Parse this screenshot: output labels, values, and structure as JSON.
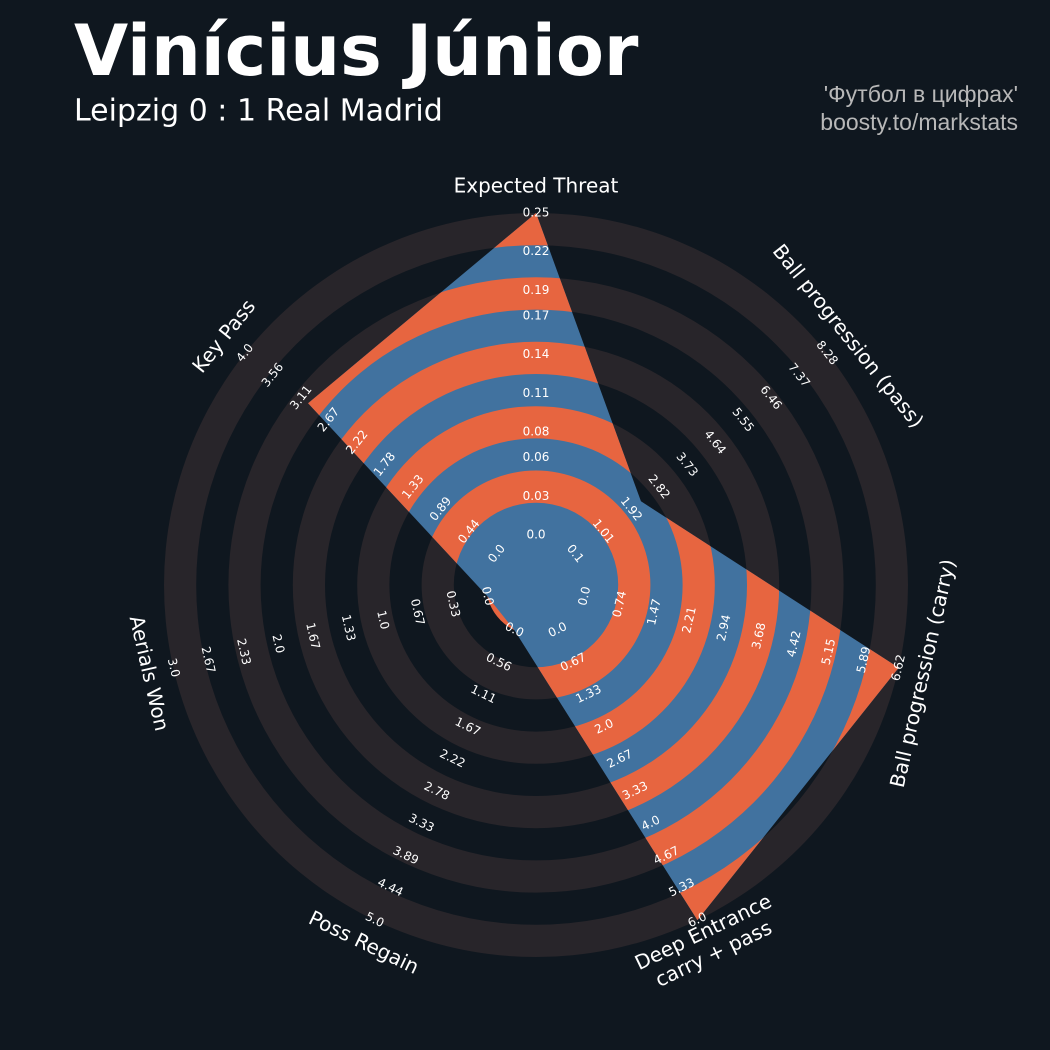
{
  "chart_data": {
    "type": "radar",
    "title": "Vinícius Júnior",
    "subtitle": "Leipzig 0 : 1 Real Madrid",
    "credits": [
      "'Футбол в цифрах'",
      "boosty.to/markstats"
    ],
    "background": "#0f171f",
    "ring_color": "#28252a",
    "axes": [
      {
        "name": "Expected Threat",
        "lim": [
          0,
          0.25
        ],
        "ticks": [
          {
            "value": 0,
            "label": "0.0"
          },
          0.03,
          0.06,
          0.08,
          0.11,
          0.14,
          0.17,
          0.19,
          0.22,
          0.25
        ]
      },
      {
        "name": "Ball progression (pass)",
        "lim": [
          0.1,
          8.28
        ],
        "ticks": [
          0.1,
          1.01,
          1.92,
          2.82,
          3.73,
          4.64,
          5.55,
          6.46,
          7.37,
          8.28
        ]
      },
      {
        "name": "Ball progression (carry)",
        "lim": [
          0,
          6.62
        ],
        "ticks": [
          {
            "value": 0,
            "label": "0.0"
          },
          0.74,
          1.47,
          2.21,
          2.94,
          3.68,
          4.42,
          5.15,
          5.89,
          6.62
        ]
      },
      {
        "name": [
          "Deep Entrance",
          "carry + pass"
        ],
        "lim": [
          0,
          6
        ],
        "ticks": [
          {
            "value": 0,
            "label": "0.0"
          },
          0.67,
          1.33,
          {
            "value": 2,
            "label": "2.0"
          },
          2.67,
          3.33,
          {
            "value": 4,
            "label": "4.0"
          },
          4.67,
          5.33,
          {
            "value": 6,
            "label": "6.0"
          }
        ]
      },
      {
        "name": "Poss Regain",
        "lim": [
          0,
          5
        ],
        "ticks": [
          {
            "value": 0,
            "label": "0.0"
          },
          0.56,
          1.11,
          1.67,
          2.22,
          2.78,
          3.33,
          3.89,
          4.44,
          {
            "value": 5,
            "label": "5.0"
          }
        ]
      },
      {
        "name": "Aerials Won",
        "lim": [
          0,
          3
        ],
        "ticks": [
          {
            "value": 0,
            "label": "0.0"
          },
          0.33,
          0.67,
          {
            "value": 1,
            "label": "1.0"
          },
          1.33,
          1.67,
          {
            "value": 2,
            "label": "2.0"
          },
          2.33,
          2.67,
          {
            "value": 3,
            "label": "3.0"
          }
        ]
      },
      {
        "name": "Key Pass",
        "lim": [
          0,
          4
        ],
        "ticks": [
          {
            "value": 0,
            "label": "0.0"
          },
          0.44,
          0.89,
          1.33,
          1.78,
          2.22,
          2.67,
          3.11,
          3.56,
          {
            "value": 4,
            "label": "4.0"
          }
        ]
      }
    ],
    "series": [
      {
        "values": [
          0.25,
          2.24,
          6.62,
          6.0,
          0,
          0,
          3.0
        ],
        "color": "#41729f",
        "alt_color": "#e76540"
      }
    ]
  }
}
